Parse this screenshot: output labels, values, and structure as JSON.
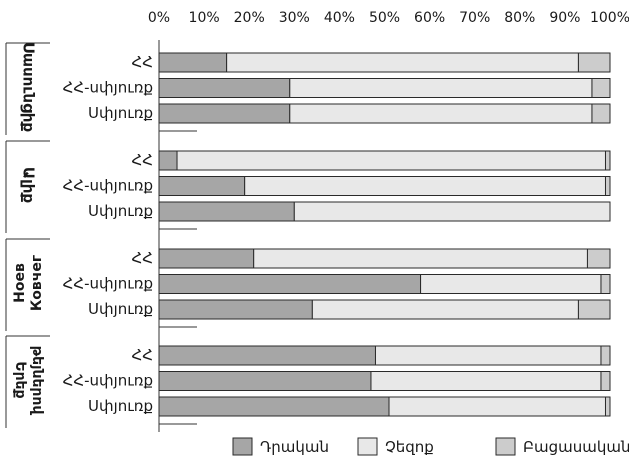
{
  "chart_data": {
    "type": "bar",
    "orientation": "horizontal",
    "stacked": true,
    "percent": true,
    "title": "",
    "xlabel": "",
    "ylabel": "",
    "xlim": [
      0,
      100
    ],
    "x_ticks": [
      "0%",
      "10%",
      "20%",
      "30%",
      "40%",
      "50%",
      "60%",
      "70%",
      "80%",
      "90%",
      "100%"
    ],
    "x_axis_position": "top",
    "grid": false,
    "legend_position": "bottom",
    "series": [
      {
        "name": "Դրական",
        "color": "#a6a6a6"
      },
      {
        "name": "Չեզոք",
        "color": "#e8e8e8"
      },
      {
        "name": "Բացասական",
        "color": "#cccccc"
      }
    ],
    "groups": [
      {
        "name": "Սասունցիք",
        "rows": [
          {
            "label": "ՀՀ",
            "values": [
              15,
              78,
              7
            ]
          },
          {
            "label": "ՀՀ-սփյուռք",
            "values": [
              29,
              67,
              4
            ]
          },
          {
            "label": "Սփյուռք",
            "values": [
              29,
              67,
              4
            ]
          }
        ]
      },
      {
        "name": "Ալիք",
        "rows": [
          {
            "label": "ՀՀ",
            "values": [
              4,
              95,
              1
            ]
          },
          {
            "label": "ՀՀ-սփյուռք",
            "values": [
              19,
              80,
              1
            ]
          },
          {
            "label": "Սփյուռք",
            "values": [
              30,
              70,
              0
            ]
          }
        ]
      },
      {
        "name": "Ноев Ковчег",
        "rows": [
          {
            "label": "ՀՀ",
            "values": [
              21,
              74,
              5
            ]
          },
          {
            "label": "ՀՀ-սփյուռք",
            "values": [
              58,
              40,
              2
            ]
          },
          {
            "label": "Սփյուռք",
            "values": [
              34,
              59,
              7
            ]
          }
        ]
      },
      {
        "name": "Երեք թեյներով",
        "rows": [
          {
            "label": "ՀՀ",
            "values": [
              48,
              50,
              2
            ]
          },
          {
            "label": "ՀՀ-սփյուռք",
            "values": [
              47,
              51,
              2
            ]
          },
          {
            "label": "Սփյուռք",
            "values": [
              51,
              48,
              1
            ]
          }
        ]
      }
    ]
  }
}
